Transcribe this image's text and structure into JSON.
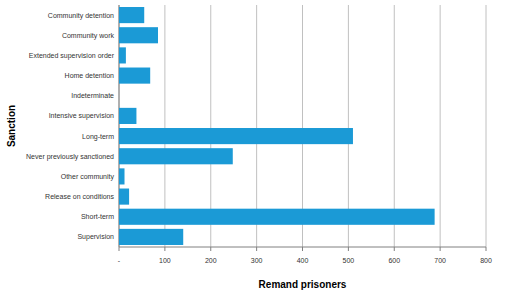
{
  "chart_data": {
    "type": "bar",
    "orientation": "horizontal",
    "x_label": "Remand prisoners",
    "y_label": "Sanction",
    "categories": [
      "Community detention",
      "Community work",
      "Extended supervision order",
      "Home detention",
      "Indeterminate",
      "Intensive supervision",
      "Long-term",
      "Never previously sanctioned",
      "Other community",
      "Release on conditions",
      "Short-term",
      "Supervision"
    ],
    "values": [
      55,
      85,
      15,
      68,
      0,
      38,
      510,
      248,
      12,
      22,
      688,
      140
    ],
    "color": "#1b9ad6",
    "xlim": [
      0,
      800
    ],
    "xticks": [
      {
        "value": 0,
        "label": "-"
      },
      100,
      200,
      300,
      400,
      500,
      600,
      700,
      800
    ],
    "grid": true
  }
}
